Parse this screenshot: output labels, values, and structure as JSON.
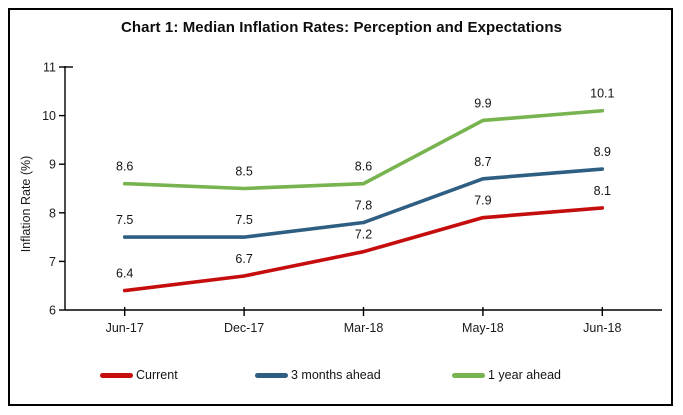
{
  "title": "Chart 1: Median Inflation Rates: Perception and Expectations",
  "text_color": "#1a1a1a",
  "data_label_color": "#141414",
  "axis_color": "#000000",
  "chart_data": {
    "type": "line",
    "title": "Chart 1: Median Inflation Rates: Perception and Expectations",
    "categories": [
      "Jun-17",
      "Dec-17",
      "Mar-18",
      "May-18",
      "Jun-18"
    ],
    "series": [
      {
        "name": "Current",
        "color": "#C60D0D",
        "values": [
          6.4,
          6.7,
          7.2,
          7.9,
          8.1
        ]
      },
      {
        "name": "3 months ahead",
        "color": "#2E5E82",
        "values": [
          7.5,
          7.5,
          7.8,
          8.7,
          8.9
        ]
      },
      {
        "name": "1 year ahead",
        "color": "#77B34E",
        "values": [
          8.6,
          8.5,
          8.6,
          9.9,
          10.1
        ]
      }
    ],
    "xlabel": "",
    "ylabel": "Inflation Rate (%)",
    "ylim": [
      6,
      11
    ],
    "y_ticks": [
      6,
      7,
      8,
      9,
      10,
      11
    ],
    "grid": false,
    "legend_position": "bottom",
    "data_labels": true
  }
}
